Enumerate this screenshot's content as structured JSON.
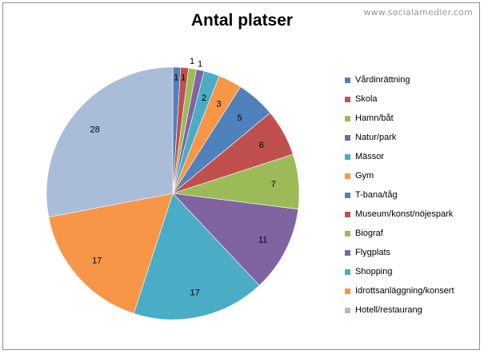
{
  "watermark": "www.socialamedier.com",
  "chart_data": {
    "type": "pie",
    "title": "Antal platser",
    "legend_placement": "right",
    "slices": [
      {
        "label": "Vårdinrättning",
        "value": 1,
        "color": "#4f81bd"
      },
      {
        "label": "Skola",
        "value": 1,
        "color": "#c0504d"
      },
      {
        "label": "Hamn/båt",
        "value": 1,
        "color": "#9bbb59"
      },
      {
        "label": "Natur/park",
        "value": 1,
        "color": "#8064a2"
      },
      {
        "label": "Mässor",
        "value": 2,
        "color": "#4bacc6"
      },
      {
        "label": "Gym",
        "value": 3,
        "color": "#f79646"
      },
      {
        "label": "T-bana/tåg",
        "value": 5,
        "color": "#4f81bd"
      },
      {
        "label": "Museum/konst/nöjespark",
        "value": 6,
        "color": "#c0504d"
      },
      {
        "label": "Biograf",
        "value": 7,
        "color": "#9bbb59"
      },
      {
        "label": "Flygplats",
        "value": 11,
        "color": "#8064a2"
      },
      {
        "label": "Shopping",
        "value": 17,
        "color": "#4bacc6"
      },
      {
        "label": "Idrottsanläggning/konsert",
        "value": 17,
        "color": "#f79646"
      },
      {
        "label": "Hotell/restaurang",
        "value": 28,
        "color": "#a9bcd8"
      }
    ]
  }
}
